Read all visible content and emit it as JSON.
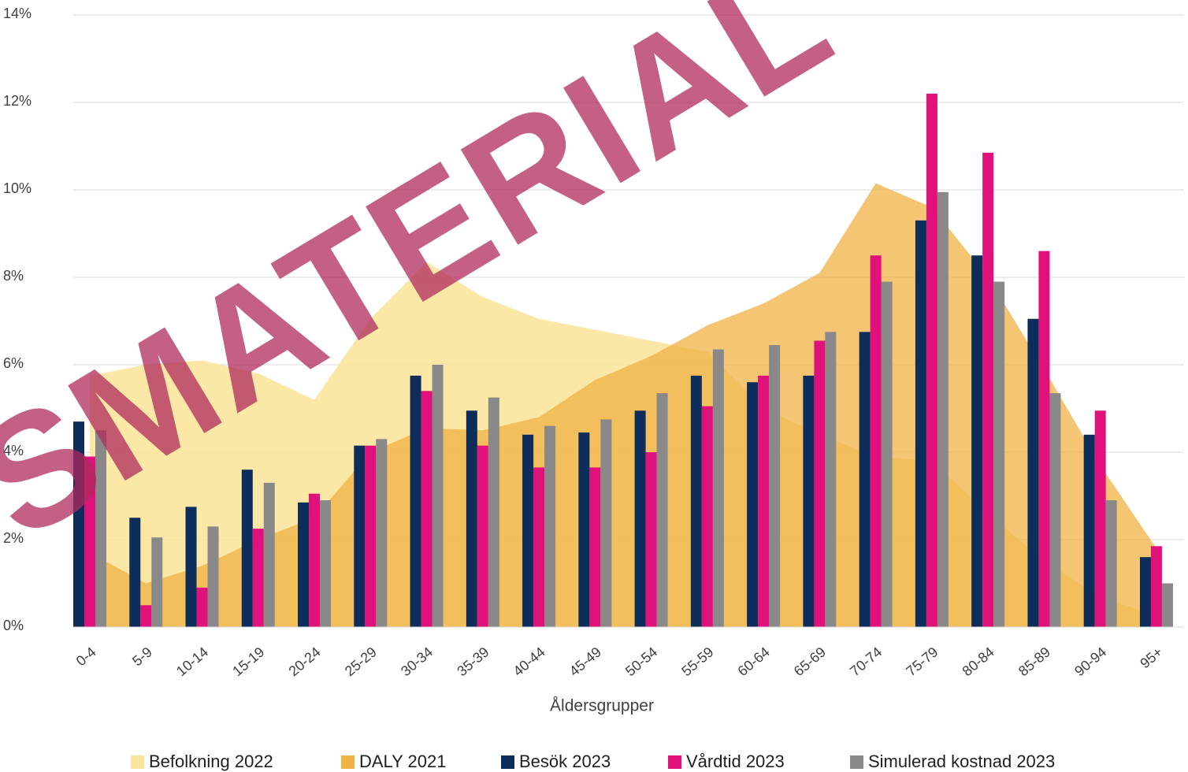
{
  "chart_data": {
    "type": "bar",
    "annotation": "SMATERIAL",
    "xlabel": "Åldersgrupper",
    "categories": [
      "0-4",
      "5-9",
      "10-14",
      "15-19",
      "20-24",
      "25-29",
      "30-34",
      "35-39",
      "40-44",
      "45-49",
      "50-54",
      "55-59",
      "60-64",
      "65-69",
      "70-74",
      "75-79",
      "80-84",
      "85-89",
      "90-94",
      "95+"
    ],
    "ylim": [
      0,
      14
    ],
    "yticks": [
      {
        "value": 0,
        "label": "0%"
      },
      {
        "value": 2,
        "label": "2%"
      },
      {
        "value": 4,
        "label": "4%"
      },
      {
        "value": 6,
        "label": "6%"
      },
      {
        "value": 8,
        "label": "8%"
      },
      {
        "value": 10,
        "label": "10%"
      },
      {
        "value": 12,
        "label": "12%"
      },
      {
        "value": 14,
        "label": "14%"
      }
    ],
    "grid": true,
    "legend": "bottom",
    "series": [
      {
        "name": "Befolkning 2022",
        "type": "area",
        "color": "#fbe49c",
        "values": [
          5.75,
          6.0,
          6.1,
          5.8,
          5.2,
          7.05,
          8.35,
          7.55,
          7.05,
          6.8,
          6.55,
          6.3,
          5.0,
          4.4,
          3.9,
          3.8,
          2.6,
          1.5,
          0.7,
          0.25
        ]
      },
      {
        "name": "DALY 2021",
        "type": "area",
        "color": "#f0b244",
        "values": [
          1.7,
          1.0,
          1.4,
          2.0,
          2.5,
          4.0,
          4.55,
          4.5,
          4.8,
          5.65,
          6.2,
          6.9,
          7.4,
          8.1,
          10.15,
          9.6,
          8.0,
          5.9,
          3.7,
          1.8
        ]
      },
      {
        "name": "Besök 2023",
        "type": "bar",
        "color": "#0d2d5a",
        "values": [
          4.7,
          2.5,
          2.75,
          3.6,
          2.85,
          4.15,
          5.75,
          4.95,
          4.4,
          4.45,
          4.95,
          5.75,
          5.6,
          5.75,
          6.75,
          9.3,
          8.5,
          7.05,
          4.4,
          1.6
        ]
      },
      {
        "name": "Vårdtid 2023",
        "type": "bar",
        "color": "#e0117a",
        "values": [
          3.9,
          0.5,
          0.9,
          2.25,
          3.05,
          4.15,
          5.4,
          4.15,
          3.65,
          3.65,
          4.0,
          5.05,
          5.75,
          6.55,
          8.5,
          12.2,
          10.85,
          8.6,
          4.95,
          1.85
        ]
      },
      {
        "name": "Simulerad kostnad 2023",
        "type": "bar",
        "color": "#898989",
        "values": [
          4.5,
          2.05,
          2.3,
          3.3,
          2.9,
          4.3,
          6.0,
          5.25,
          4.6,
          4.75,
          5.35,
          6.35,
          6.45,
          6.75,
          7.9,
          9.95,
          7.9,
          5.35,
          2.9,
          1.0
        ]
      }
    ]
  }
}
